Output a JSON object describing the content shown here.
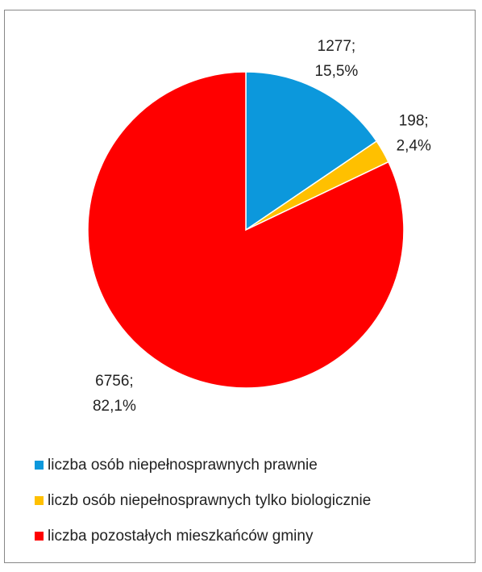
{
  "chart_data": {
    "type": "pie",
    "categories": [
      "liczba osób niepełnosprawnych prawnie",
      "liczb osób niepełnosprawnych tylko biologicznie",
      "liczba pozostałych mieszkańców gminy"
    ],
    "values": [
      1277,
      198,
      6756
    ],
    "value_labels": [
      "1277;",
      "198;",
      "6756;"
    ],
    "percents": [
      15.5,
      2.4,
      82.1
    ],
    "percent_labels": [
      "15,5%",
      "2,4%",
      "82,1%"
    ],
    "colors": [
      "#0c98dc",
      "#ffc000",
      "#ff0000"
    ],
    "legend": "bottom"
  }
}
